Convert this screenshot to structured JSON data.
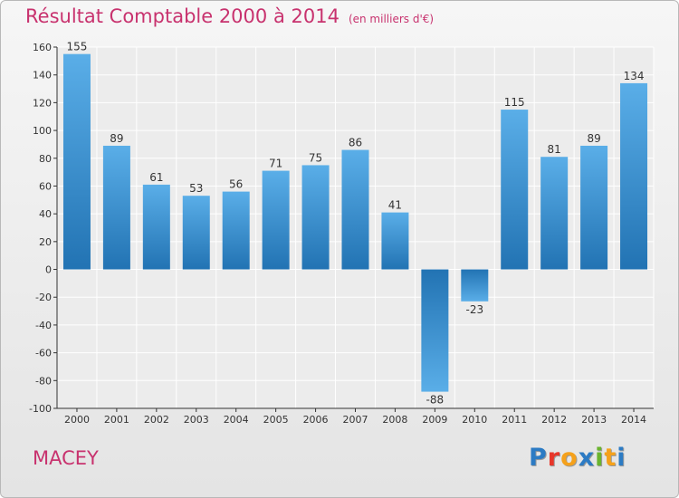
{
  "title": "Résultat Comptable 2000 à 2014",
  "unit": "(en milliers d'€)",
  "commune": "MACEY",
  "brand": {
    "text": "Proxiti",
    "letter_colors": [
      "#2c7bc4",
      "#e8362a",
      "#f5a11b",
      "#2c7bc4",
      "#6ab42e",
      "#f5a11b",
      "#2c7bc4"
    ]
  },
  "colors": {
    "title": "#c8326e",
    "bar_light": "#5aaee8",
    "bar_dark": "#2273b3",
    "label": "#333333"
  },
  "chart_data": {
    "type": "bar",
    "categories": [
      "2000",
      "2001",
      "2002",
      "2003",
      "2004",
      "2005",
      "2006",
      "2007",
      "2008",
      "2009",
      "2010",
      "2011",
      "2012",
      "2013",
      "2014"
    ],
    "values": [
      155,
      89,
      61,
      53,
      56,
      71,
      75,
      86,
      41,
      -88,
      -23,
      115,
      81,
      89,
      134
    ],
    "ylim": [
      -100,
      160
    ],
    "yticks": [
      160,
      140,
      120,
      100,
      80,
      60,
      40,
      20,
      0,
      -20,
      -40,
      -60,
      -80,
      -100
    ],
    "grid": true,
    "xlabel": "",
    "ylabel": ""
  }
}
